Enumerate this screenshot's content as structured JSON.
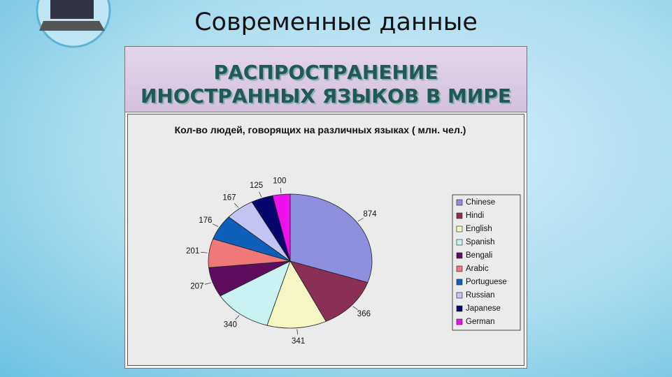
{
  "header": "Современные данные",
  "banner": [
    "РАСПРОСТРАНЕНИЕ",
    "ИНОСТРАННЫХ ЯЗЫКОВ В МИРЕ"
  ],
  "chart_data": {
    "type": "pie",
    "title": "Кол-во людей, говорящих на различных языках ( млн. чел.)",
    "categories": [
      "Chinese",
      "Hindi",
      "English",
      "Spanish",
      "Bengali",
      "Arabic",
      "Portuguese",
      "Russian",
      "Japanese",
      "German"
    ],
    "values": [
      874,
      366,
      341,
      340,
      207,
      201,
      176,
      167,
      125,
      100
    ],
    "colors": [
      "#8f8fdf",
      "#8a2f55",
      "#f6f6c4",
      "#c9f2f2",
      "#5e0d5e",
      "#f07878",
      "#0d5fba",
      "#c4c4f2",
      "#06066e",
      "#ee11ee"
    ],
    "legend": "right"
  }
}
